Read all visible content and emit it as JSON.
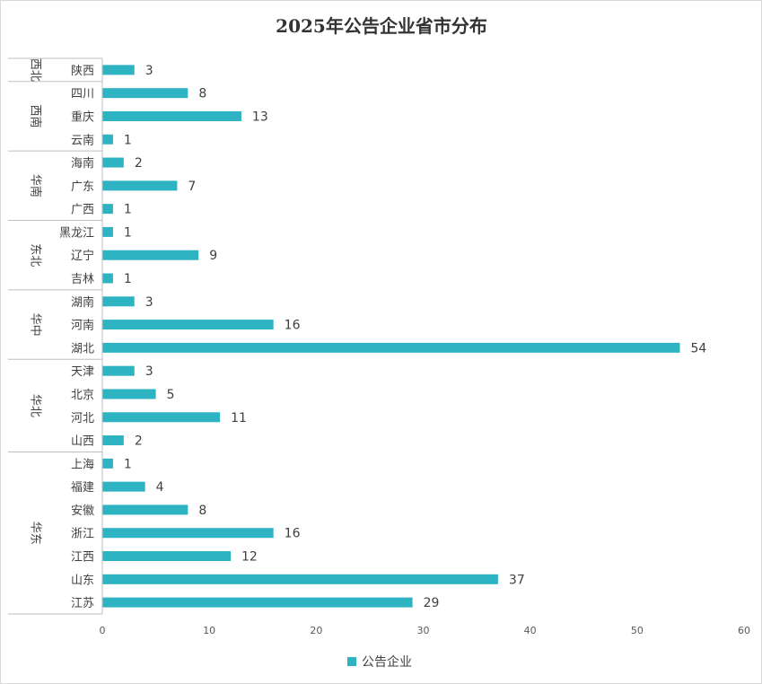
{
  "colors": {
    "bar": "#2eb3c3",
    "axis": "#bfbfbf",
    "text": "#404040"
  },
  "chart_data": {
    "type": "bar",
    "orientation": "horizontal",
    "title": "2025年公告企业省市分布",
    "xlim": [
      0,
      60
    ],
    "xticks": [
      0,
      10,
      20,
      30,
      40,
      50,
      60
    ],
    "grid": false,
    "legend_position": "bottom",
    "series": [
      {
        "name": "公告企业"
      }
    ],
    "groups": [
      {
        "region": "西北",
        "items": [
          {
            "province": "陕西",
            "value": 3
          }
        ]
      },
      {
        "region": "西南",
        "items": [
          {
            "province": "四川",
            "value": 8
          },
          {
            "province": "重庆",
            "value": 13
          },
          {
            "province": "云南",
            "value": 1
          }
        ]
      },
      {
        "region": "华南",
        "items": [
          {
            "province": "海南",
            "value": 2
          },
          {
            "province": "广东",
            "value": 7
          },
          {
            "province": "广西",
            "value": 1
          }
        ]
      },
      {
        "region": "东北",
        "items": [
          {
            "province": "黑龙江",
            "value": 1
          },
          {
            "province": "辽宁",
            "value": 9
          },
          {
            "province": "吉林",
            "value": 1
          }
        ]
      },
      {
        "region": "华中",
        "items": [
          {
            "province": "湖南",
            "value": 3
          },
          {
            "province": "河南",
            "value": 16
          },
          {
            "province": "湖北",
            "value": 54
          }
        ]
      },
      {
        "region": "华北",
        "items": [
          {
            "province": "天津",
            "value": 3
          },
          {
            "province": "北京",
            "value": 5
          },
          {
            "province": "河北",
            "value": 11
          },
          {
            "province": "山西",
            "value": 2
          }
        ]
      },
      {
        "region": "华东",
        "items": [
          {
            "province": "上海",
            "value": 1
          },
          {
            "province": "福建",
            "value": 4
          },
          {
            "province": "安徽",
            "value": 8
          },
          {
            "province": "浙江",
            "value": 16
          },
          {
            "province": "江西",
            "value": 12
          },
          {
            "province": "山东",
            "value": 37
          },
          {
            "province": "江苏",
            "value": 29
          }
        ]
      }
    ]
  }
}
